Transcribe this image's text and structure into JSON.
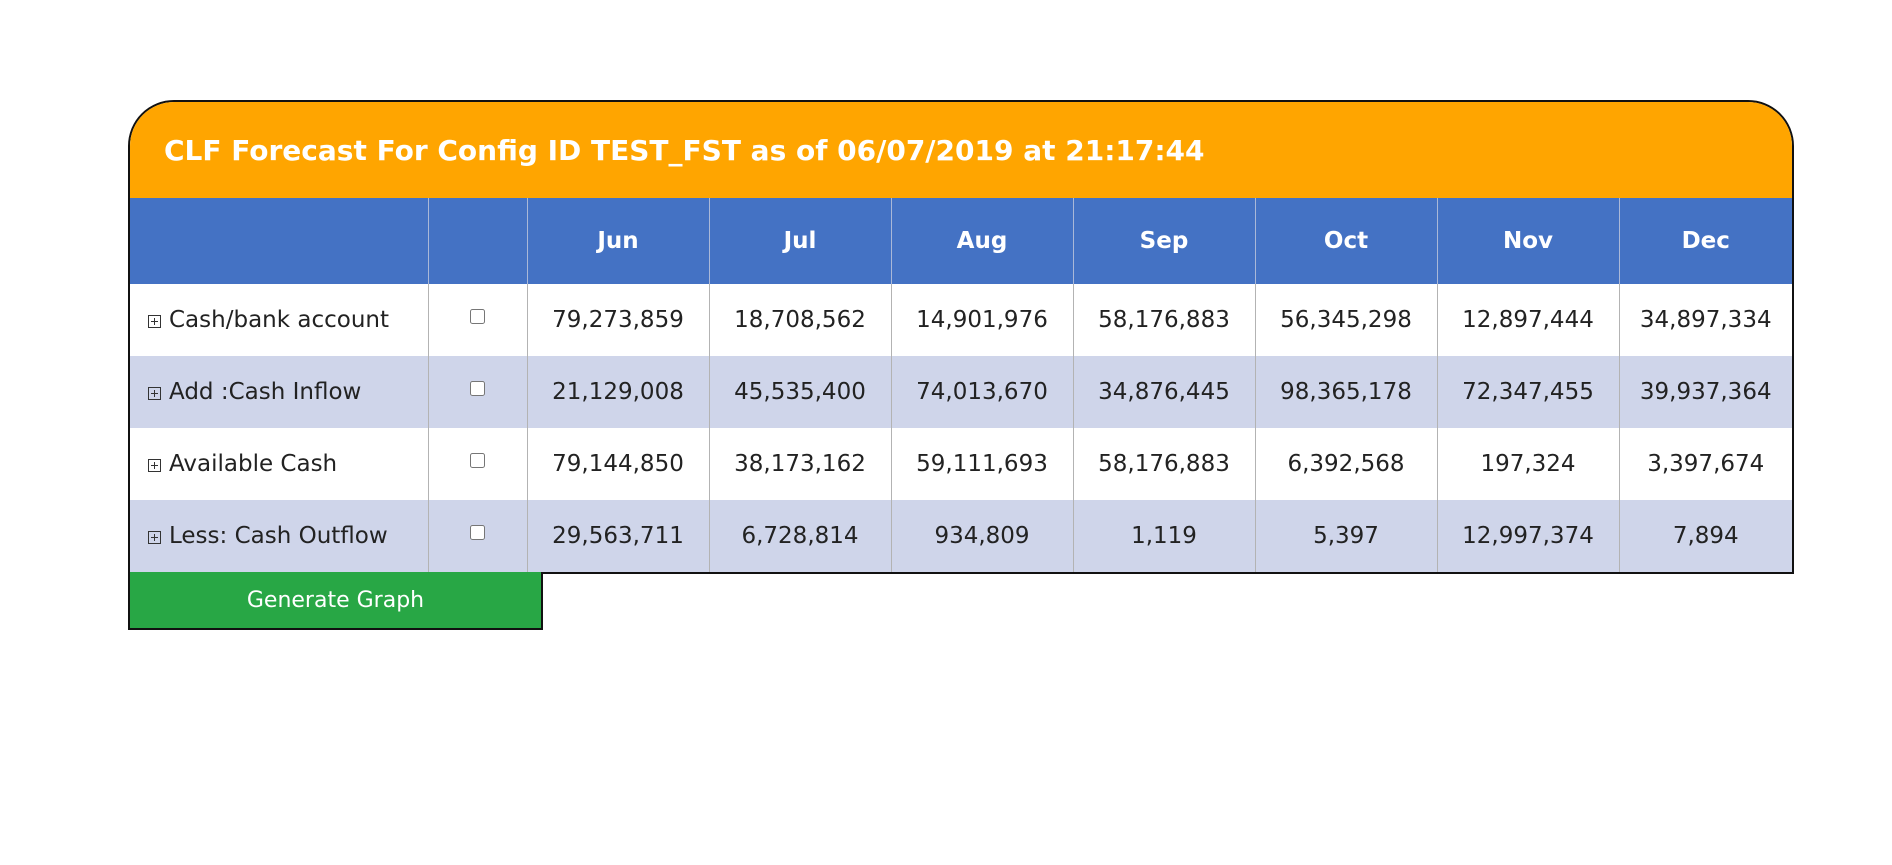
{
  "title": "CLF Forecast For Config ID TEST_FST as of 06/07/2019 at 21:17:44",
  "table": {
    "headers": [
      "",
      "",
      "Jun",
      "Jul",
      "Aug",
      "Sep",
      "Oct",
      "Nov",
      "Dec"
    ],
    "rows": [
      {
        "label": "Cash/bank account",
        "values": [
          "79,273,859",
          "18,708,562",
          "14,901,976",
          "58,176,883",
          "56,345,298",
          "12,897,444",
          "34,897,334"
        ]
      },
      {
        "label": "Add :Cash Inflow",
        "values": [
          "21,129,008",
          "45,535,400",
          "74,013,670",
          "34,876,445",
          "98,365,178",
          "72,347,455",
          "39,937,364"
        ]
      },
      {
        "label": "Available Cash",
        "values": [
          "79,144,850",
          "38,173,162",
          "59,111,693",
          "58,176,883",
          "6,392,568",
          "197,324",
          "3,397,674"
        ]
      },
      {
        "label": "Less: Cash Outflow",
        "values": [
          "29,563,711",
          "6,728,814",
          "934,809",
          "1,119",
          "5,397",
          "12,997,374",
          "7,894"
        ]
      }
    ]
  },
  "generate_button_label": "Generate Graph",
  "colors": {
    "title_bg": "#ffa500",
    "header_bg": "#4472c4",
    "alt_row_bg": "#cfd5ea",
    "button_bg": "#28a745"
  },
  "icons": {
    "row_expand": "plus-square-icon"
  }
}
